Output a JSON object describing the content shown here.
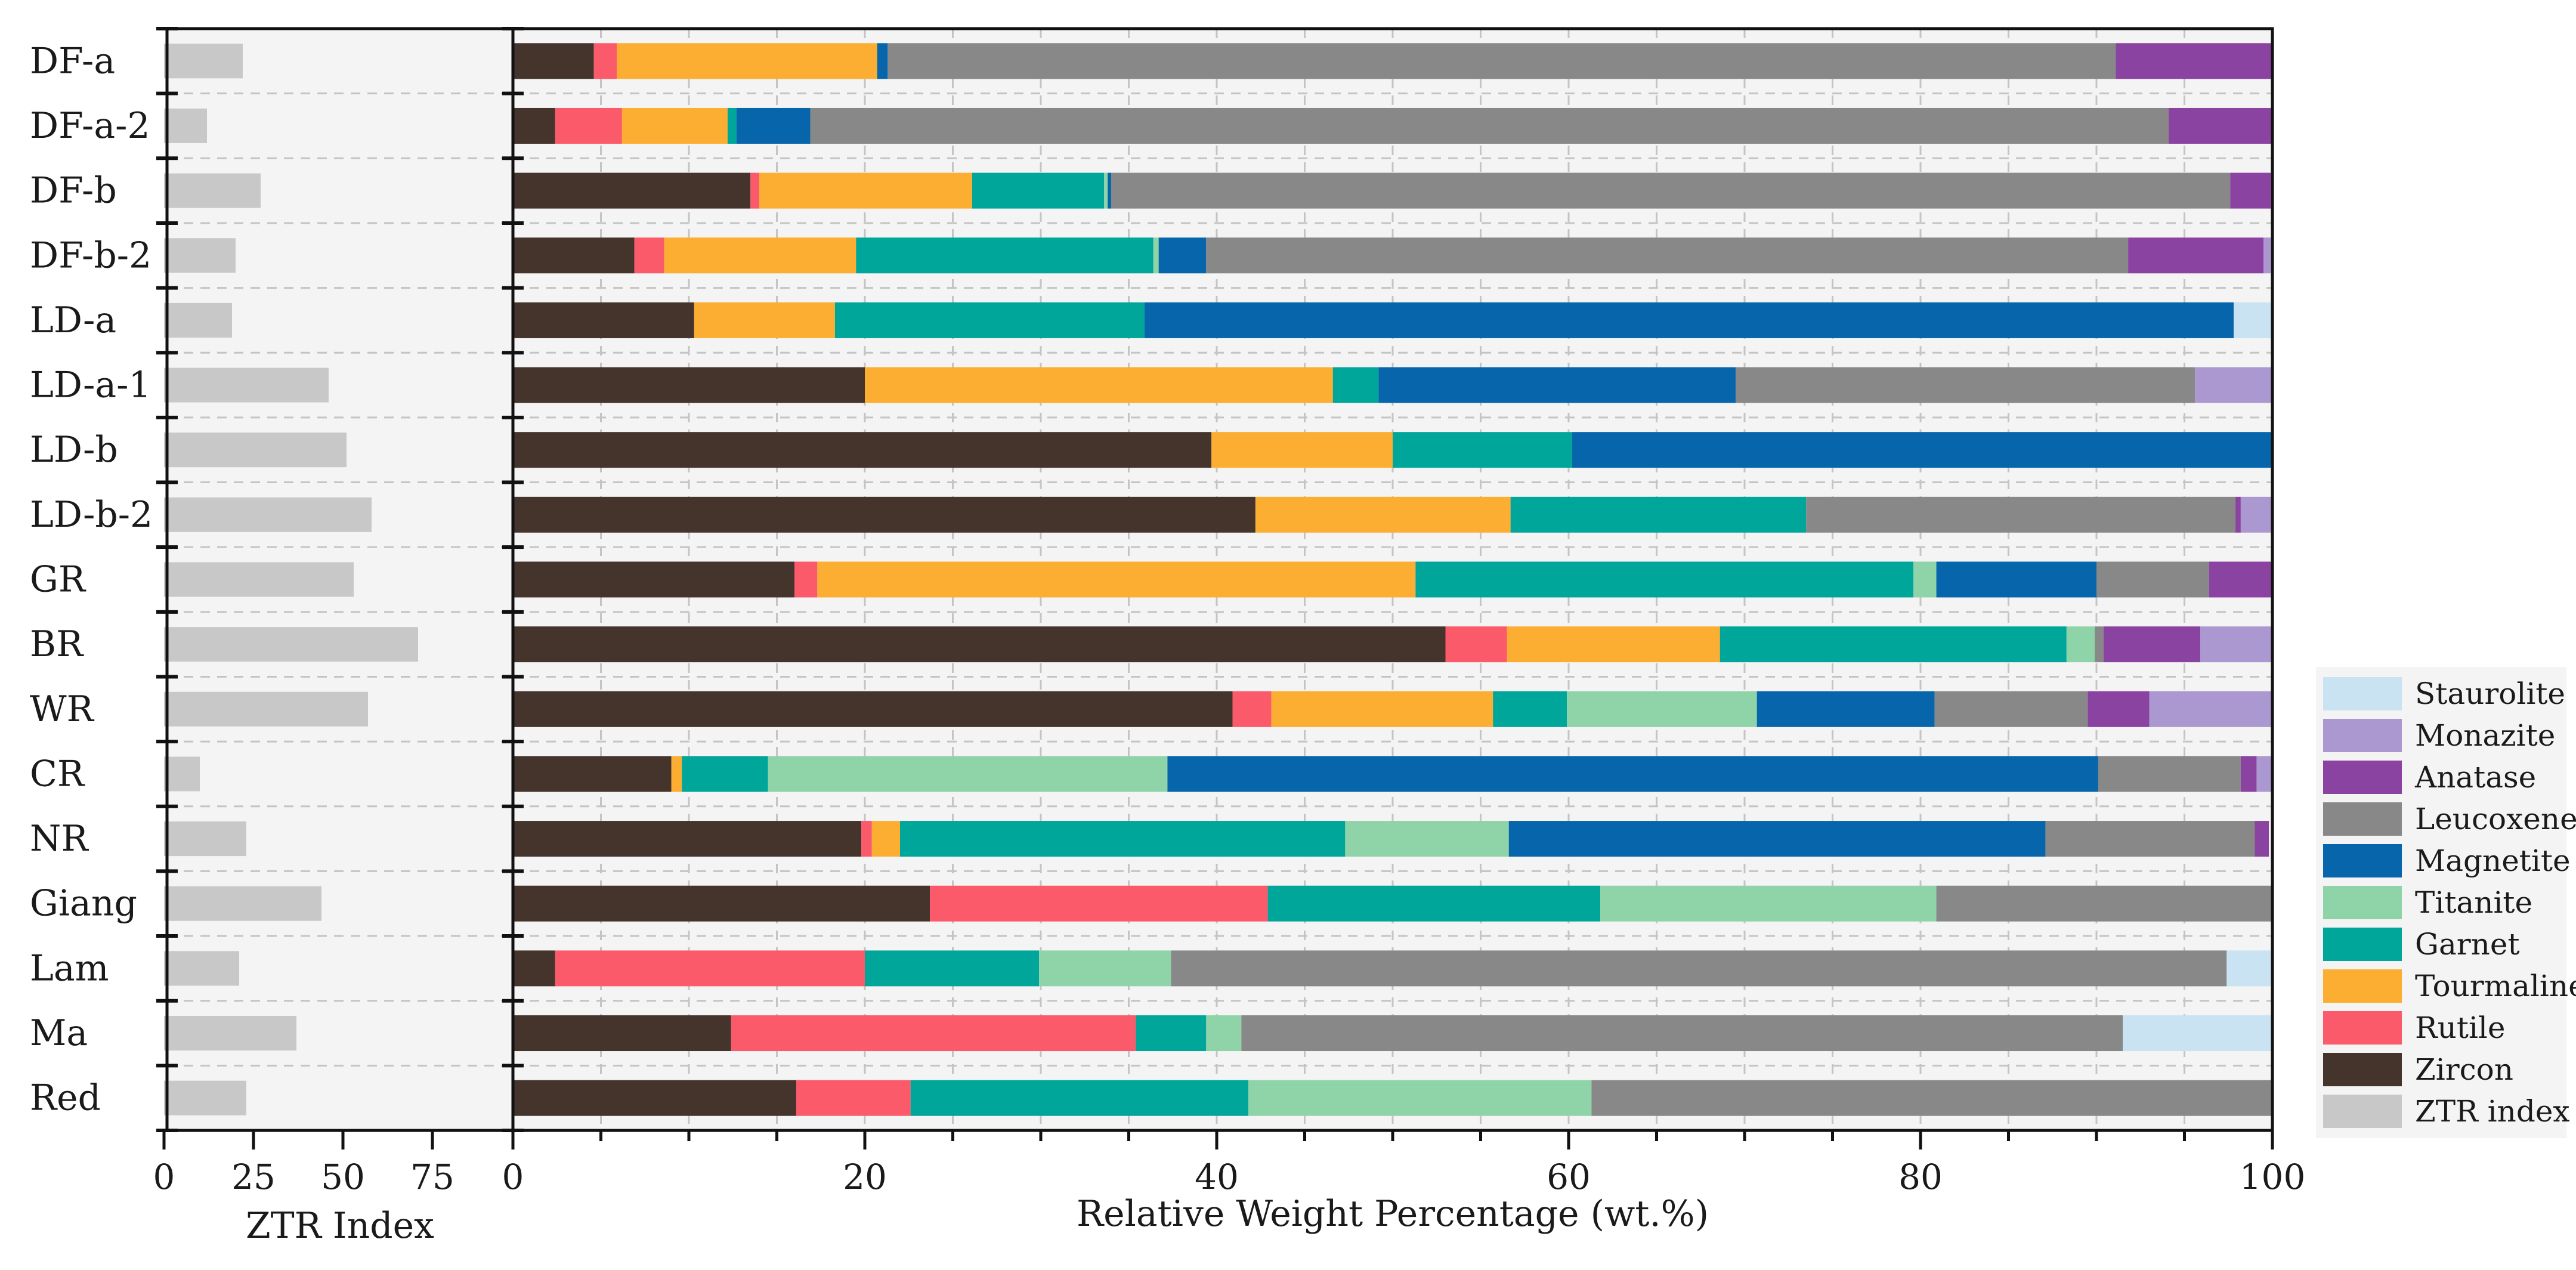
{
  "chart_data": [
    {
      "type": "bar",
      "orientation": "horizontal",
      "title": "",
      "xlabel": "ZTR Index",
      "ylabel": "",
      "xlim": [
        0,
        90
      ],
      "xticks": [
        0,
        25,
        50,
        75
      ],
      "xtick_labels": [
        "0",
        "25",
        "50",
        "75"
      ],
      "categories": [
        "DF-a",
        "DF-a-2",
        "DF-b",
        "DF-b-2",
        "LD-a",
        "LD-a-1",
        "LD-b",
        "LD-b-2",
        "GR",
        "BR",
        "WR",
        "CR",
        "NR",
        "Giang",
        "Lam",
        "Ma",
        "Red"
      ],
      "series": [
        {
          "name": "ZTR index",
          "color": "#c8c8c8",
          "values": [
            22,
            12,
            27,
            20,
            19,
            46,
            51,
            58,
            53,
            71,
            57,
            10,
            23,
            44,
            21,
            37,
            23
          ]
        }
      ]
    },
    {
      "type": "bar",
      "orientation": "horizontal",
      "stacked": true,
      "title": "",
      "xlabel": "Relative Weight Percentage (wt.%)",
      "ylabel": "",
      "xlim": [
        0,
        100
      ],
      "xticks": [
        0,
        20,
        40,
        60,
        80,
        100
      ],
      "xtick_labels": [
        "0",
        "20",
        "40",
        "60",
        "80",
        "100"
      ],
      "grid": true,
      "categories": [
        "DF-a",
        "DF-a-2",
        "DF-b",
        "DF-b-2",
        "LD-a",
        "LD-a-1",
        "LD-b",
        "LD-b-2",
        "GR",
        "BR",
        "WR",
        "CR",
        "NR",
        "Giang",
        "Lam",
        "Ma",
        "Red"
      ],
      "series": [
        {
          "name": "Zircon",
          "color": "#45342b",
          "values": [
            4.6,
            2.4,
            13.5,
            6.9,
            10.3,
            20.0,
            39.7,
            42.2,
            16.0,
            53.0,
            40.9,
            9.0,
            19.8,
            23.7,
            2.4,
            12.4,
            16.1
          ]
        },
        {
          "name": "Rutile",
          "color": "#fb5a6b",
          "values": [
            1.3,
            3.8,
            0.5,
            1.7,
            0,
            0,
            0,
            0,
            1.3,
            3.5,
            2.2,
            0,
            0.6,
            19.2,
            17.6,
            23.0,
            6.5
          ]
        },
        {
          "name": "Tourmaline",
          "color": "#fcae32",
          "values": [
            14.8,
            6.0,
            12.1,
            10.9,
            8.0,
            26.6,
            10.3,
            14.5,
            34.0,
            12.1,
            12.6,
            0.6,
            1.6,
            0,
            0,
            0,
            0
          ]
        },
        {
          "name": "Garnet",
          "color": "#00a69a",
          "values": [
            0,
            0.5,
            7.5,
            16.9,
            17.6,
            2.6,
            10.2,
            16.8,
            28.3,
            19.7,
            4.2,
            4.9,
            25.3,
            18.9,
            9.9,
            4.0,
            19.2
          ]
        },
        {
          "name": "Titanite",
          "color": "#8fd4a8",
          "values": [
            0,
            0,
            0.2,
            0.3,
            0,
            0,
            0,
            0,
            1.3,
            1.6,
            10.8,
            22.7,
            9.3,
            19.1,
            7.5,
            2.0,
            19.5
          ]
        },
        {
          "name": "Magnetite",
          "color": "#0766ab",
          "values": [
            0.6,
            4.2,
            0.2,
            2.7,
            61.9,
            20.3,
            39.8,
            0,
            9.1,
            0,
            10.1,
            52.9,
            30.5,
            0,
            0,
            0,
            0
          ]
        },
        {
          "name": "Leucoxene",
          "color": "#888888",
          "values": [
            69.8,
            77.2,
            63.6,
            52.4,
            0,
            26.1,
            0,
            24.4,
            6.4,
            0.5,
            8.7,
            8.1,
            11.9,
            19.1,
            60.0,
            50.1,
            38.7
          ]
        },
        {
          "name": "Anatase",
          "color": "#8b43a2",
          "values": [
            8.9,
            5.9,
            2.3,
            7.7,
            0,
            0,
            0,
            0.3,
            3.8,
            5.5,
            3.5,
            0.9,
            0.8,
            0,
            0,
            0,
            0
          ]
        },
        {
          "name": "Monazite",
          "color": "#ab98d0",
          "values": [
            0,
            0,
            0.1,
            0.4,
            0,
            4.4,
            0,
            1.8,
            0,
            4.1,
            7.0,
            0.9,
            0,
            0,
            0,
            0,
            0
          ]
        },
        {
          "name": "Staurolite",
          "color": "#c9e3f3",
          "values": [
            0,
            0,
            0,
            0,
            2.2,
            0,
            0,
            0,
            0,
            0,
            0,
            0,
            0,
            0,
            2.5,
            8.5,
            0
          ]
        }
      ]
    }
  ],
  "legend": {
    "placement": "right",
    "items": [
      {
        "name": "Staurolite",
        "color": "#c9e3f3"
      },
      {
        "name": "Monazite",
        "color": "#ab98d0"
      },
      {
        "name": "Anatase",
        "color": "#8b43a2"
      },
      {
        "name": "Leucoxene",
        "color": "#888888"
      },
      {
        "name": "Magnetite",
        "color": "#0766ab"
      },
      {
        "name": "Titanite",
        "color": "#8fd4a8"
      },
      {
        "name": "Garnet",
        "color": "#00a69a"
      },
      {
        "name": "Tourmaline",
        "color": "#fcae32"
      },
      {
        "name": "Rutile",
        "color": "#fb5a6b"
      },
      {
        "name": "Zircon",
        "color": "#45342b"
      },
      {
        "name": "ZTR index",
        "color": "#c8c8c8"
      }
    ]
  }
}
